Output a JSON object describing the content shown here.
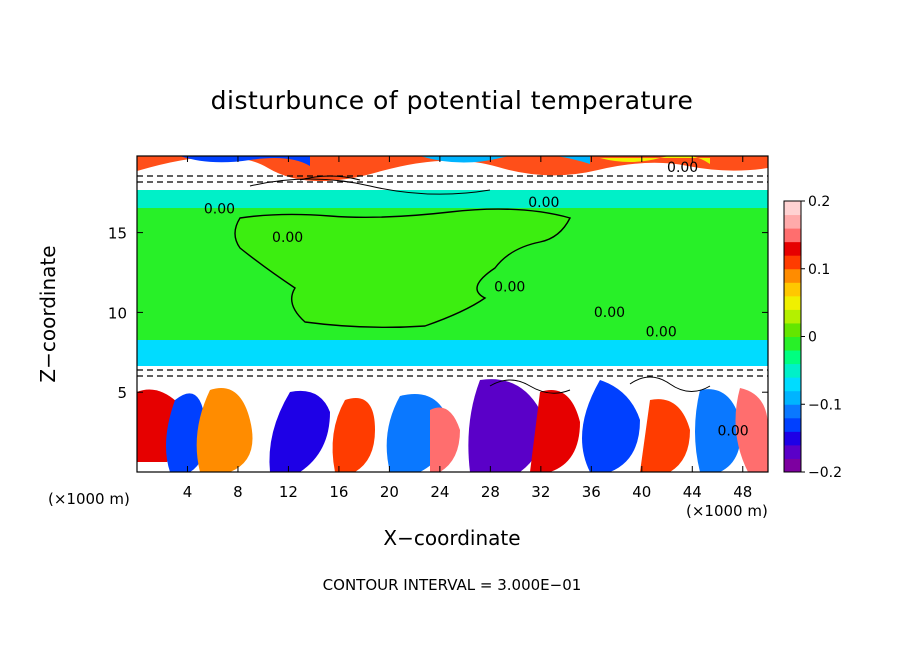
{
  "chart_data": {
    "type": "heatmap",
    "title": "disturbunce of potential temperature",
    "xlabel": "X−coordinate",
    "ylabel": "Z−coordinate",
    "x_unit_left": "(×1000 m)",
    "x_unit_right": "(×1000 m)",
    "xlim": [
      0,
      50
    ],
    "ylim": [
      0,
      19.8
    ],
    "x_ticks": [
      "4",
      "8",
      "12",
      "16",
      "20",
      "24",
      "28",
      "32",
      "36",
      "40",
      "44",
      "48"
    ],
    "x_tick_values": [
      4,
      8,
      12,
      16,
      20,
      24,
      28,
      32,
      36,
      40,
      44,
      48
    ],
    "y_ticks": [
      "5",
      "10",
      "15"
    ],
    "y_tick_values": [
      5,
      10,
      15
    ],
    "colorbar": {
      "min": -0.2,
      "max": 0.2,
      "tick_labels": [
        "0.2",
        "0.1",
        "0",
        "−0.1",
        "−0.2"
      ],
      "tick_values": [
        0.2,
        0.1,
        0,
        -0.1,
        -0.2
      ],
      "colors": [
        "#7d00a0",
        "#5a00c8",
        "#1e00e6",
        "#0040ff",
        "#0a78ff",
        "#00b4ff",
        "#00dcff",
        "#00f0c8",
        "#00ff80",
        "#28f028",
        "#64e600",
        "#b4f000",
        "#f0f000",
        "#ffc800",
        "#ff8c00",
        "#ff3c00",
        "#e60000",
        "#ff6e6e",
        "#ffaaaa",
        "#ffd2d2"
      ]
    },
    "contour_labels": [
      "0.00",
      "0.00",
      "0.00",
      "0.00",
      "0.00",
      "0.00",
      "0.00",
      "0.00"
    ],
    "contour_interval": "CONTOUR INTERVAL = 3.000E−01"
  }
}
